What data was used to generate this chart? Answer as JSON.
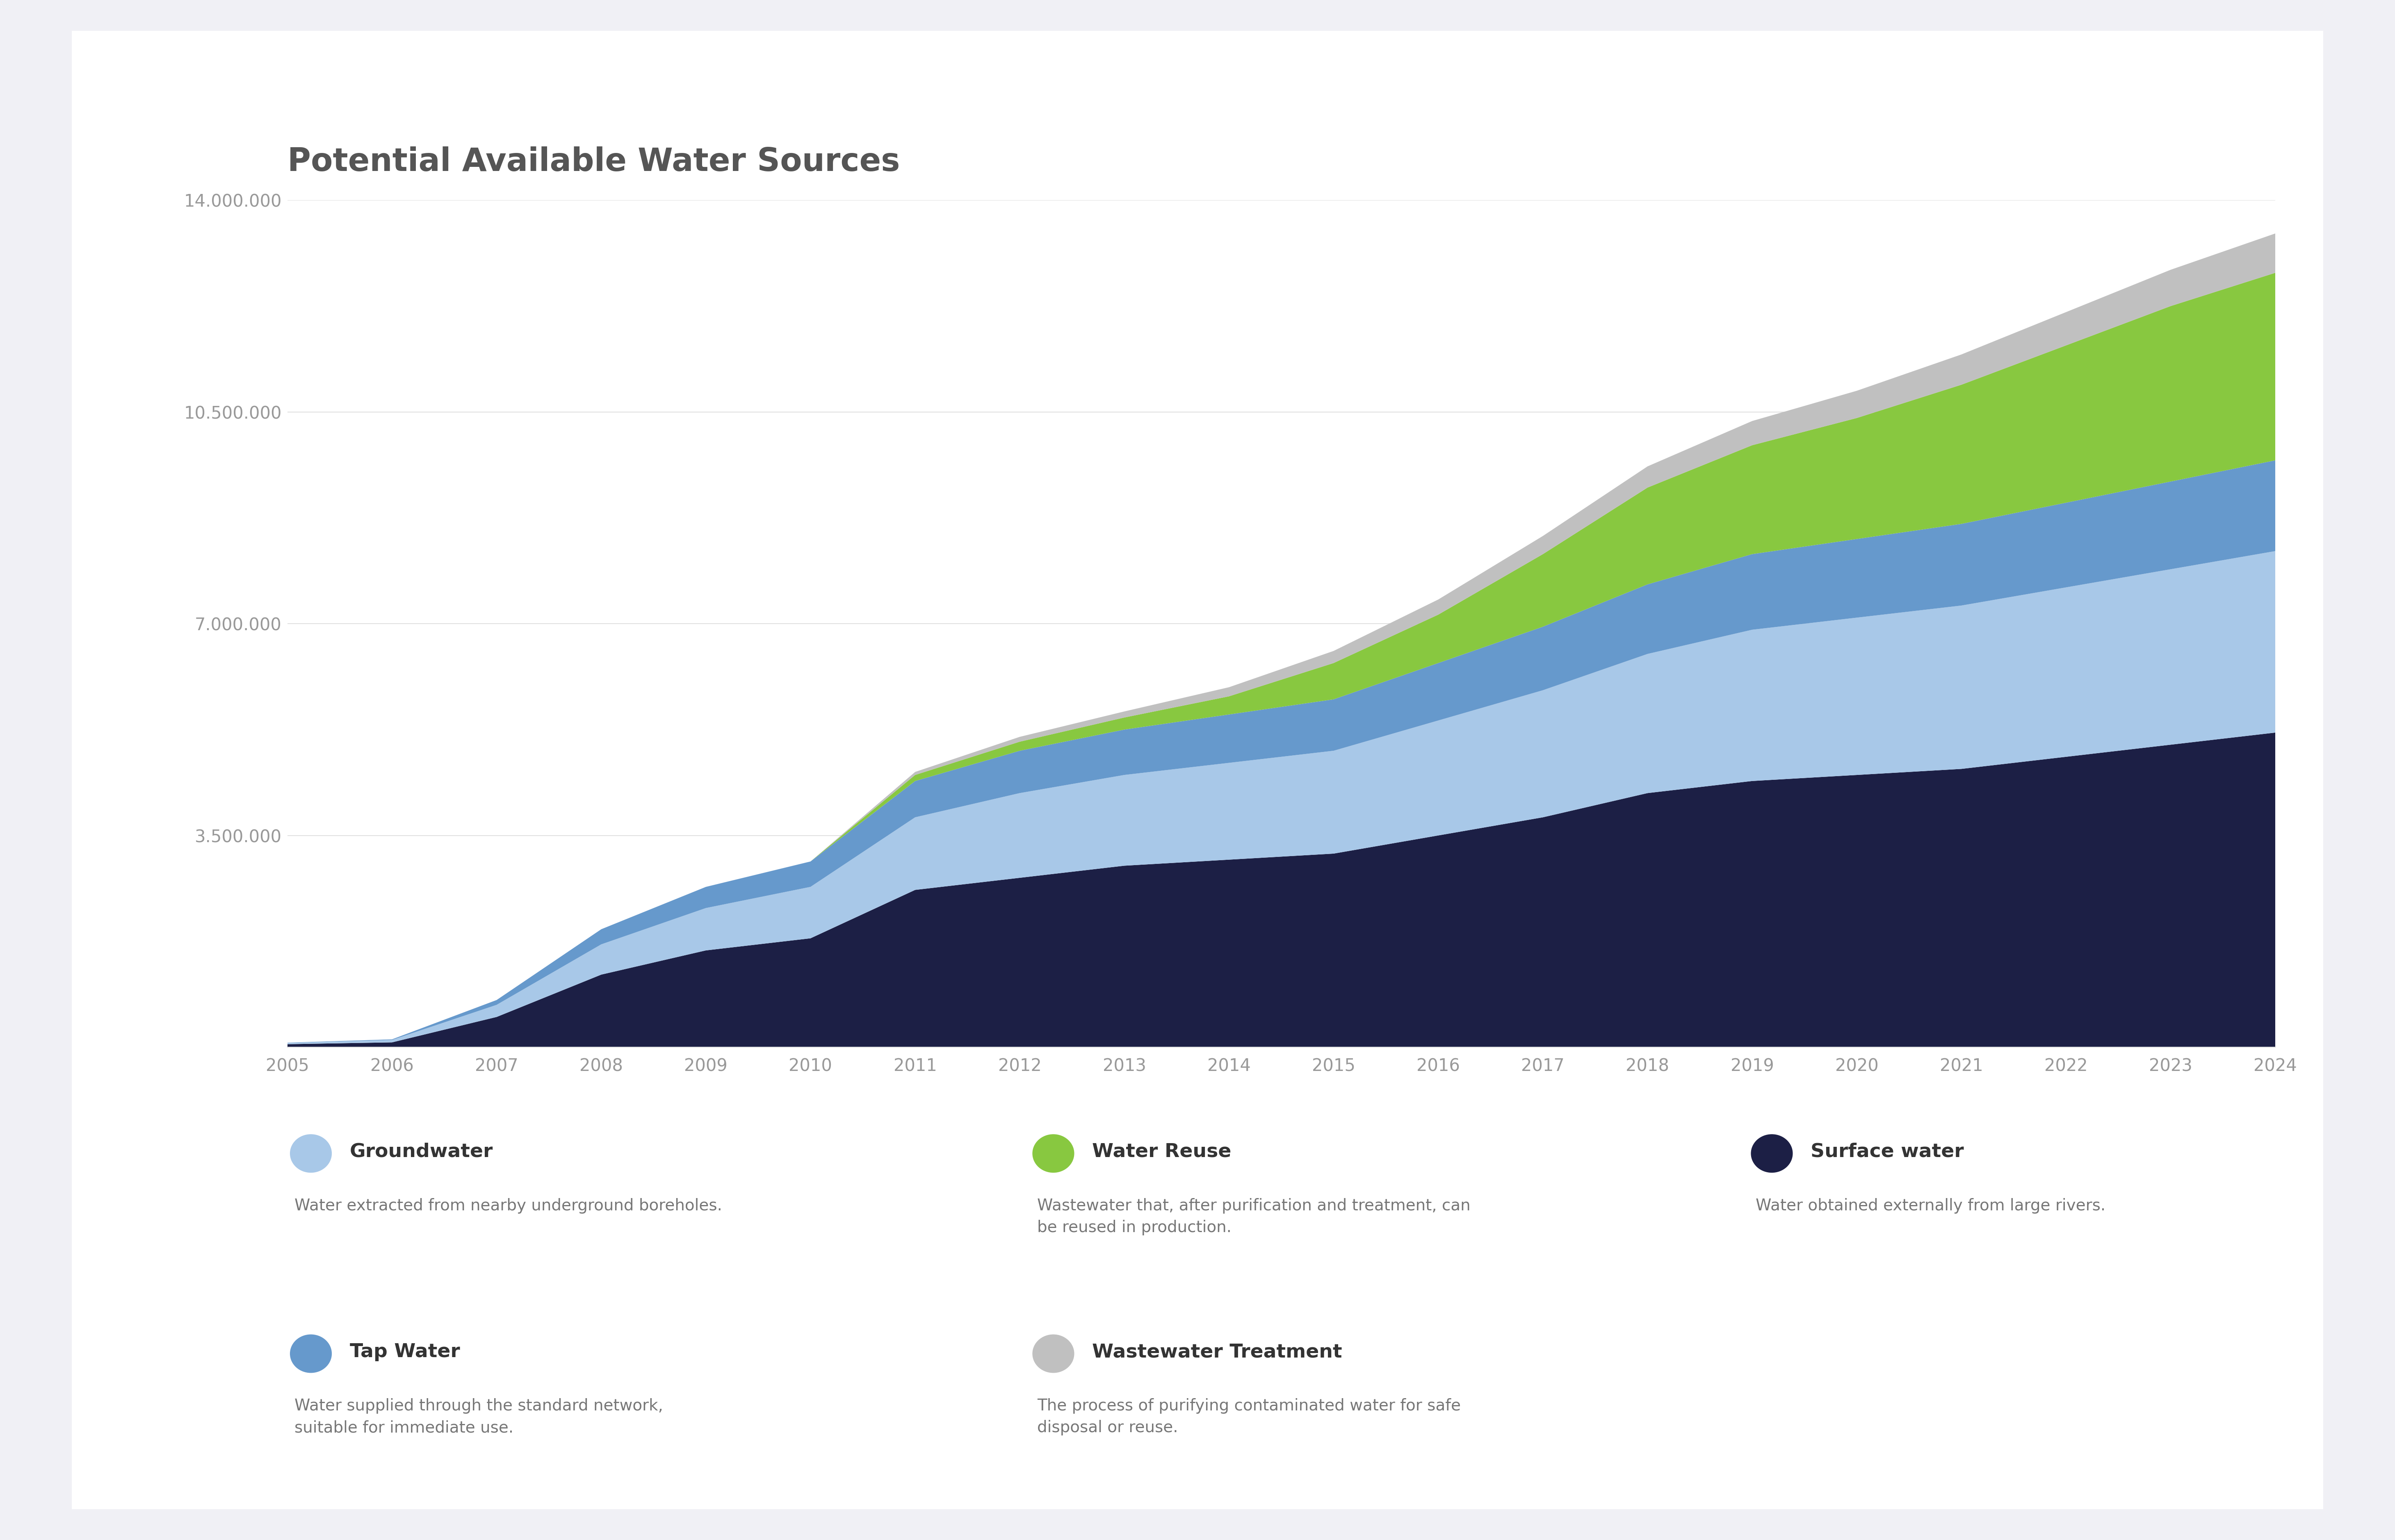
{
  "title": "Potential Available Water Sources",
  "years": [
    2005,
    2006,
    2007,
    2008,
    2009,
    2010,
    2011,
    2012,
    2013,
    2014,
    2015,
    2016,
    2017,
    2018,
    2019,
    2020,
    2021,
    2022,
    2023,
    2024
  ],
  "surface_water": [
    50000,
    80000,
    500000,
    1200000,
    1600000,
    1800000,
    2600000,
    2800000,
    3000000,
    3100000,
    3200000,
    3500000,
    3800000,
    4200000,
    4400000,
    4500000,
    4600000,
    4800000,
    5000000,
    5200000
  ],
  "groundwater": [
    20000,
    40000,
    200000,
    500000,
    700000,
    850000,
    1200000,
    1400000,
    1500000,
    1600000,
    1700000,
    1900000,
    2100000,
    2300000,
    2500000,
    2600000,
    2700000,
    2800000,
    2900000,
    3000000
  ],
  "tap_water": [
    5000,
    10000,
    80000,
    250000,
    350000,
    420000,
    600000,
    700000,
    750000,
    800000,
    850000,
    950000,
    1050000,
    1150000,
    1250000,
    1300000,
    1350000,
    1400000,
    1450000,
    1500000
  ],
  "water_reuse": [
    0,
    0,
    0,
    0,
    0,
    0,
    100000,
    150000,
    200000,
    300000,
    600000,
    800000,
    1200000,
    1600000,
    1800000,
    2000000,
    2300000,
    2600000,
    2900000,
    3100000
  ],
  "wastewater": [
    0,
    0,
    0,
    0,
    0,
    0,
    50000,
    80000,
    100000,
    150000,
    200000,
    250000,
    300000,
    350000,
    400000,
    450000,
    500000,
    550000,
    600000,
    650000
  ],
  "colors": {
    "surface_water": "#1c1f45",
    "groundwater": "#a8c8e8",
    "tap_water": "#6699cc",
    "water_reuse": "#88c840",
    "wastewater": "#c0c0c0"
  },
  "ylim": [
    0,
    14000000
  ],
  "yticks": [
    0,
    3500000,
    7000000,
    10500000,
    14000000
  ],
  "ytick_labels": [
    "",
    "3.500.000",
    "7.000.000",
    "10.500.000",
    "14.000.000"
  ],
  "background_color": "#f0f0f5",
  "card_background": "#ffffff",
  "title_color": "#555555",
  "title_fontsize": 56,
  "tick_fontsize": 30,
  "tick_color": "#999999",
  "grid_color": "#e0e0e0",
  "legend_label_fontsize": 34,
  "legend_desc_fontsize": 28,
  "legend_items": [
    {
      "label": "Groundwater",
      "color": "#a8c8e8",
      "description": "Water extracted from nearby underground boreholes.",
      "row": 0,
      "col": 0
    },
    {
      "label": "Water Reuse",
      "color": "#88c840",
      "description": "Wastewater that, after purification and treatment, can\nbe reused in production.",
      "row": 0,
      "col": 1
    },
    {
      "label": "Surface water",
      "color": "#1c1f45",
      "description": "Water obtained externally from large rivers.",
      "row": 0,
      "col": 2
    },
    {
      "label": "Tap Water",
      "color": "#6699cc",
      "description": "Water supplied through the standard network,\nsuitable for immediate use.",
      "row": 1,
      "col": 0
    },
    {
      "label": "Wastewater Treatment",
      "color": "#c0c0c0",
      "description": "The process of purifying contaminated water for safe\ndisposal or reuse.",
      "row": 1,
      "col": 1
    }
  ]
}
